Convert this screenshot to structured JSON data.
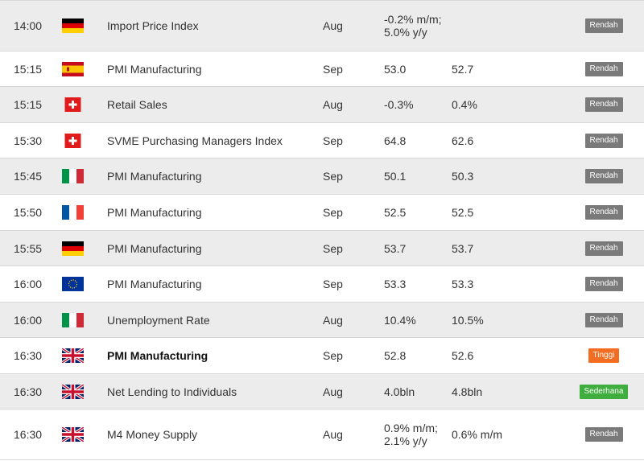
{
  "colors": {
    "row_alt": "#ececec",
    "row_white": "#ffffff",
    "badge_low": "#7a7a7a",
    "badge_high": "#f26d21",
    "badge_medium": "#3fae3f"
  },
  "rows": [
    {
      "time": "14:00",
      "flag": "germany-flag-icon",
      "event": "Import Price Index",
      "period": "Aug",
      "actual": "-0.2% m/m; 5.0% y/y",
      "forecast": "",
      "impact": "Rendah",
      "impact_level": "low"
    },
    {
      "time": "15:15",
      "flag": "spain-flag-icon",
      "event": "PMI Manufacturing",
      "period": "Sep",
      "actual": "53.0",
      "forecast": "52.7",
      "impact": "Rendah",
      "impact_level": "low"
    },
    {
      "time": "15:15",
      "flag": "switzerland-flag-icon",
      "event": "Retail Sales",
      "period": "Aug",
      "actual": "-0.3%",
      "forecast": "0.4%",
      "impact": "Rendah",
      "impact_level": "low"
    },
    {
      "time": "15:30",
      "flag": "switzerland-flag-icon",
      "event": "SVME Purchasing Managers Index",
      "period": "Sep",
      "actual": "64.8",
      "forecast": "62.6",
      "impact": "Rendah",
      "impact_level": "low"
    },
    {
      "time": "15:45",
      "flag": "italy-flag-icon",
      "event": "PMI Manufacturing",
      "period": "Sep",
      "actual": "50.1",
      "forecast": "50.3",
      "impact": "Rendah",
      "impact_level": "low"
    },
    {
      "time": "15:50",
      "flag": "france-flag-icon",
      "event": "PMI Manufacturing",
      "period": "Sep",
      "actual": "52.5",
      "forecast": "52.5",
      "impact": "Rendah",
      "impact_level": "low"
    },
    {
      "time": "15:55",
      "flag": "germany-flag-icon",
      "event": "PMI Manufacturing",
      "period": "Sep",
      "actual": "53.7",
      "forecast": "53.7",
      "impact": "Rendah",
      "impact_level": "low"
    },
    {
      "time": "16:00",
      "flag": "eu-flag-icon",
      "event": "PMI Manufacturing",
      "period": "Sep",
      "actual": "53.3",
      "forecast": "53.3",
      "impact": "Rendah",
      "impact_level": "low"
    },
    {
      "time": "16:00",
      "flag": "italy-flag-icon",
      "event": "Unemployment Rate",
      "period": "Aug",
      "actual": "10.4%",
      "forecast": "10.5%",
      "impact": "Rendah",
      "impact_level": "low"
    },
    {
      "time": "16:30",
      "flag": "uk-flag-icon",
      "event": "PMI Manufacturing",
      "period": "Sep",
      "actual": "52.8",
      "forecast": "52.6",
      "impact": "Tinggi",
      "impact_level": "high"
    },
    {
      "time": "16:30",
      "flag": "uk-flag-icon",
      "event": "Net Lending to Individuals",
      "period": "Aug",
      "actual": "4.0bln",
      "forecast": "4.8bln",
      "impact": "Sederhana",
      "impact_level": "medium"
    },
    {
      "time": "16:30",
      "flag": "uk-flag-icon",
      "event": "M4 Money Supply",
      "period": "Aug",
      "actual": "0.9% m/m; 2.1% y/y",
      "forecast": "0.6% m/m",
      "impact": "Rendah",
      "impact_level": "low"
    }
  ]
}
